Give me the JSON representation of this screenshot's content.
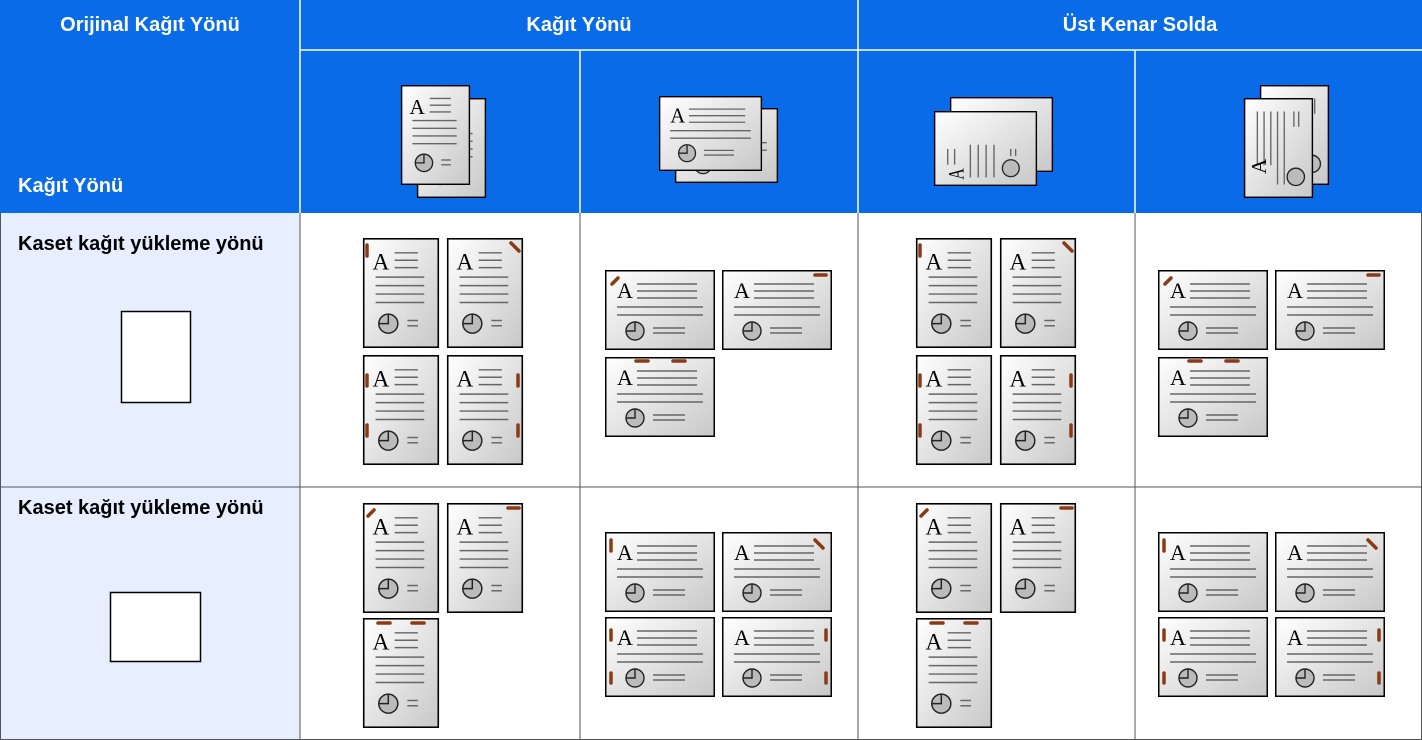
{
  "header": {
    "original_orientation": "Orijinal Kağıt Yönü",
    "paper_orientation": "Kağıt Yönü",
    "top_edge_left": "Üst Kenar Solda",
    "paper_orientation_sub": "Kağıt Yönü"
  },
  "rows": [
    {
      "label": "Kaset kağıt yükleme yönü"
    },
    {
      "label": "Kaset kağıt yükleme yönü"
    }
  ]
}
